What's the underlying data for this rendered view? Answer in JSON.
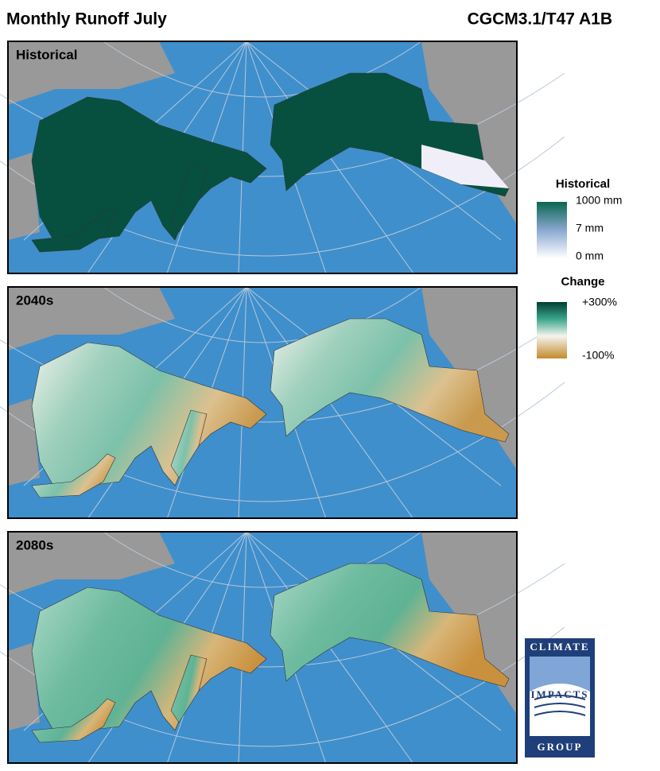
{
  "header": {
    "title": "Monthly Runoff July",
    "model": "CGCM3.1/T47 A1B"
  },
  "panels": [
    {
      "label": "Historical"
    },
    {
      "label": "2040s"
    },
    {
      "label": "2080s"
    }
  ],
  "legend": {
    "historical": {
      "title": "Historical",
      "ticks": [
        "1000 mm",
        "7 mm",
        "0 mm"
      ]
    },
    "change": {
      "title": "Change",
      "ticks": [
        "+300%",
        "-100%"
      ]
    }
  },
  "logo": {
    "lines": [
      "CLIMATE",
      "IMPACTS",
      "GROUP"
    ]
  }
}
